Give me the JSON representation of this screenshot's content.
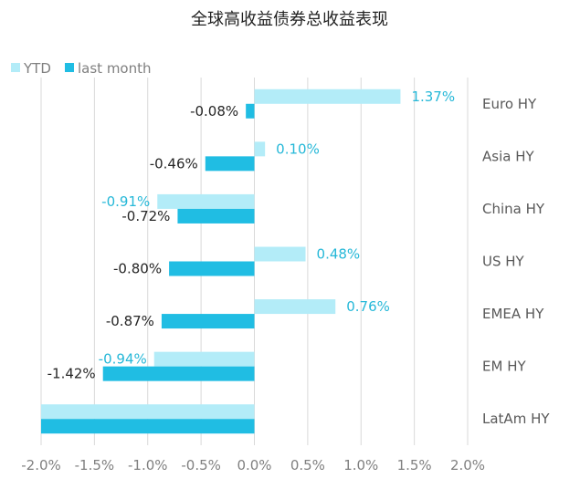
{
  "chart_data": {
    "type": "bar",
    "orientation": "horizontal",
    "title": "全球高收益债券总收益表现",
    "categories": [
      "Euro HY",
      "Asia HY",
      "China HY",
      "US HY",
      "EMEA HY",
      "EM HY",
      "LatAm HY"
    ],
    "series": [
      {
        "name": "YTD",
        "color": "#b3ecf8",
        "values": [
          1.37,
          0.1,
          -0.91,
          0.48,
          0.76,
          -0.94,
          -2.0
        ],
        "labels": [
          "1.37%",
          "0.10%",
          "-0.91%",
          "0.48%",
          "0.76%",
          "-0.94%",
          ""
        ]
      },
      {
        "name": "last month",
        "color": "#20bde3",
        "values": [
          -0.08,
          -0.46,
          -0.72,
          -0.8,
          -0.87,
          -1.42,
          -2.0
        ],
        "labels": [
          "-0.08%",
          "-0.46%",
          "-0.72%",
          "-0.80%",
          "-0.87%",
          "-1.42%",
          ""
        ]
      }
    ],
    "x_ticks": [
      "-2.0%",
      "-1.5%",
      "-1.0%",
      "-0.5%",
      "0.0%",
      "0.5%",
      "1.0%",
      "1.5%",
      "2.0%"
    ],
    "xlim": [
      -2.0,
      2.0
    ],
    "grid": true,
    "legend": "top-left"
  }
}
